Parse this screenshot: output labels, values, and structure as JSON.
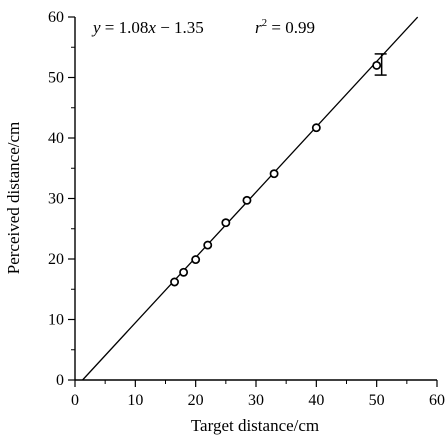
{
  "chart_data": {
    "type": "scatter",
    "xlabel": "Target distance/cm",
    "ylabel": "Perceived distance/cm",
    "xlim": [
      0,
      60
    ],
    "ylim": [
      0,
      60
    ],
    "xticks": [
      "0",
      "10",
      "20",
      "30",
      "40",
      "50",
      "60"
    ],
    "yticks": [
      "0",
      "10",
      "20",
      "30",
      "40",
      "50",
      "60"
    ],
    "grid": false,
    "annotation": {
      "eq_lhs": "y",
      "eq_rhs": " = 1.08",
      "eq_var": "x",
      "eq_const": " − 1.35",
      "r_sym": "r",
      "r_exp": "2",
      "r_val": " = 0.99"
    },
    "series": [
      {
        "points": [
          {
            "x": 16.5,
            "y": 16.2
          },
          {
            "x": 18.0,
            "y": 17.8
          },
          {
            "x": 20.0,
            "y": 19.9
          },
          {
            "x": 22.0,
            "y": 22.3
          },
          {
            "x": 25.0,
            "y": 26.0
          },
          {
            "x": 28.5,
            "y": 29.7
          },
          {
            "x": 33.0,
            "y": 34.1
          },
          {
            "x": 40.0,
            "y": 41.7
          },
          {
            "x": 50.0,
            "y": 52.0
          }
        ],
        "error_bars": [
          {
            "x": 50.0,
            "low": 50.4,
            "high": 53.9
          }
        ]
      }
    ],
    "fit_line": {
      "slope": 1.08,
      "intercept": -1.35,
      "x_range": [
        1.25,
        56.8
      ]
    }
  }
}
